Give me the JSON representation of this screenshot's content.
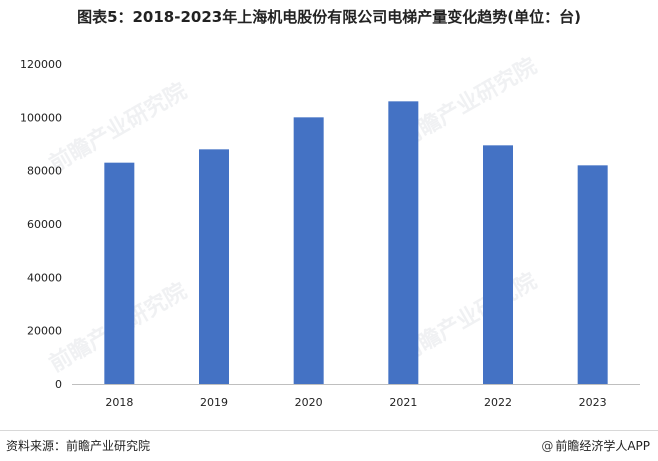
{
  "title": "图表5：2018-2023年上海机电股份有限公司电梯产量变化趋势(单位：台)",
  "footer": {
    "source": "资料来源：前瞻产业研究院",
    "brand": "前瞻经济学人APP",
    "at_icon": "@"
  },
  "watermark_text": "前瞻产业研究院",
  "colors": {
    "bar": "#4472C4",
    "axis": "#bfbfbf",
    "text": "#222222"
  },
  "chart_data": {
    "type": "bar",
    "title": "图表5：2018-2023年上海机电股份有限公司电梯产量变化趋势(单位：台)",
    "categories": [
      "2018",
      "2019",
      "2020",
      "2021",
      "2022",
      "2023"
    ],
    "values": [
      83000,
      88000,
      100000,
      106000,
      89500,
      82000
    ],
    "ylim": [
      0,
      120000
    ],
    "yticks": [
      0,
      20000,
      40000,
      60000,
      80000,
      100000,
      120000
    ],
    "xlabel": "",
    "ylabel": "",
    "grid": false,
    "legend": "none"
  }
}
